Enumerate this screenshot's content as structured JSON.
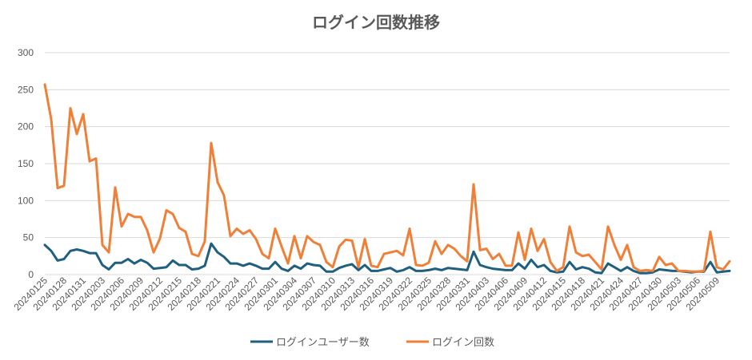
{
  "chart_data": {
    "type": "line",
    "title": "ログイン回数推移",
    "xlabel": "",
    "ylabel": "",
    "ylim": [
      0,
      300
    ],
    "yticks": [
      0,
      50,
      100,
      150,
      200,
      250,
      300
    ],
    "grid": true,
    "legend_position": "bottom",
    "start_date": "2024-01-25",
    "tick_labels": [
      "20240125",
      "20240128",
      "20240131",
      "20240203",
      "20240206",
      "20240209",
      "20240212",
      "20240215",
      "20240218",
      "20240221",
      "20240224",
      "20240227",
      "20240301",
      "20240304",
      "20240307",
      "20240310",
      "20240313",
      "20240316",
      "20240319",
      "20240322",
      "20240325",
      "20240328",
      "20240331",
      "20240403",
      "20240406",
      "20240409",
      "20240412",
      "20240415",
      "20240418",
      "20240421",
      "20240424",
      "20240427",
      "20240430",
      "20240503",
      "20240506",
      "20240509"
    ],
    "series": [
      {
        "name": "ログインユーザー数",
        "color": "#1f5f7f",
        "values": [
          40,
          32,
          19,
          21,
          32,
          34,
          32,
          29,
          29,
          13,
          7,
          16,
          16,
          21,
          15,
          20,
          16,
          8,
          9,
          10,
          19,
          13,
          13,
          7,
          8,
          12,
          42,
          30,
          24,
          15,
          15,
          12,
          15,
          12,
          8,
          8,
          17,
          8,
          5,
          12,
          8,
          15,
          13,
          12,
          4,
          4,
          9,
          12,
          14,
          6,
          13,
          5,
          5,
          7,
          9,
          4,
          6,
          10,
          5,
          5,
          6,
          8,
          6,
          9,
          8,
          7,
          6,
          31,
          13,
          10,
          8,
          7,
          6,
          6,
          15,
          8,
          20,
          10,
          13,
          5,
          3,
          4,
          17,
          7,
          10,
          8,
          3,
          2,
          15,
          10,
          5,
          10,
          5,
          2,
          2,
          3,
          7,
          6,
          5,
          5,
          4,
          3,
          4,
          4,
          17,
          3,
          4,
          5
        ]
      },
      {
        "name": "ログイン回数",
        "color": "#f07f37",
        "values": [
          257,
          210,
          117,
          120,
          225,
          190,
          217,
          153,
          157,
          40,
          30,
          118,
          65,
          82,
          78,
          78,
          60,
          30,
          49,
          87,
          82,
          63,
          58,
          28,
          25,
          45,
          178,
          125,
          107,
          52,
          62,
          55,
          60,
          48,
          28,
          22,
          62,
          38,
          15,
          52,
          22,
          52,
          44,
          40,
          17,
          10,
          38,
          47,
          46,
          10,
          48,
          12,
          10,
          28,
          30,
          32,
          26,
          62,
          13,
          12,
          16,
          45,
          28,
          40,
          35,
          25,
          18,
          122,
          33,
          35,
          21,
          28,
          12,
          12,
          57,
          20,
          62,
          32,
          48,
          17,
          5,
          10,
          65,
          30,
          25,
          27,
          17,
          7,
          65,
          40,
          20,
          40,
          10,
          5,
          6,
          5,
          24,
          13,
          15,
          5,
          5,
          4,
          4,
          5,
          58,
          10,
          7,
          18
        ]
      }
    ]
  }
}
